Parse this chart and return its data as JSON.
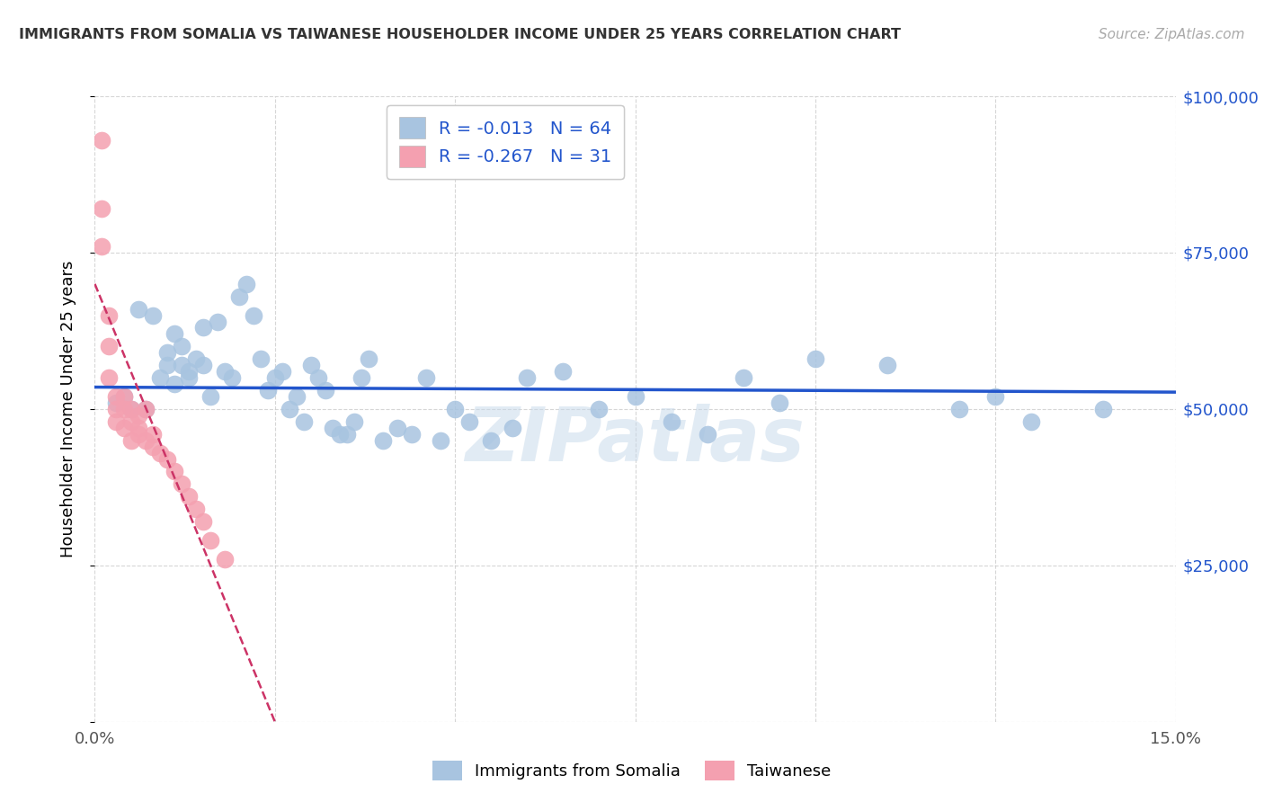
{
  "title": "IMMIGRANTS FROM SOMALIA VS TAIWANESE HOUSEHOLDER INCOME UNDER 25 YEARS CORRELATION CHART",
  "source": "Source: ZipAtlas.com",
  "ylabel": "Householder Income Under 25 years",
  "xlim": [
    0,
    0.15
  ],
  "ylim": [
    0,
    100000
  ],
  "blue_color": "#a8c4e0",
  "pink_color": "#f4a0b0",
  "blue_line_color": "#2255cc",
  "pink_line_color": "#cc3366",
  "watermark": "ZIPatlas",
  "legend_r_blue": "-0.013",
  "legend_n_blue": "64",
  "legend_r_pink": "-0.267",
  "legend_n_pink": "31",
  "blue_scatter_x": [
    0.003,
    0.004,
    0.005,
    0.006,
    0.007,
    0.008,
    0.009,
    0.01,
    0.01,
    0.011,
    0.011,
    0.012,
    0.012,
    0.013,
    0.013,
    0.014,
    0.015,
    0.015,
    0.016,
    0.017,
    0.018,
    0.019,
    0.02,
    0.021,
    0.022,
    0.023,
    0.024,
    0.025,
    0.026,
    0.027,
    0.028,
    0.029,
    0.03,
    0.031,
    0.032,
    0.033,
    0.034,
    0.035,
    0.036,
    0.037,
    0.038,
    0.04,
    0.042,
    0.044,
    0.046,
    0.048,
    0.05,
    0.052,
    0.055,
    0.058,
    0.06,
    0.065,
    0.07,
    0.075,
    0.08,
    0.085,
    0.09,
    0.095,
    0.1,
    0.11,
    0.12,
    0.125,
    0.13,
    0.14
  ],
  "blue_scatter_y": [
    51000,
    52000,
    50000,
    66000,
    50000,
    65000,
    55000,
    59000,
    57000,
    54000,
    62000,
    60000,
    57000,
    56000,
    55000,
    58000,
    63000,
    57000,
    52000,
    64000,
    56000,
    55000,
    68000,
    70000,
    65000,
    58000,
    53000,
    55000,
    56000,
    50000,
    52000,
    48000,
    57000,
    55000,
    53000,
    47000,
    46000,
    46000,
    48000,
    55000,
    58000,
    45000,
    47000,
    46000,
    55000,
    45000,
    50000,
    48000,
    45000,
    47000,
    55000,
    56000,
    50000,
    52000,
    48000,
    46000,
    55000,
    51000,
    58000,
    57000,
    50000,
    52000,
    48000,
    50000
  ],
  "pink_scatter_x": [
    0.001,
    0.001,
    0.001,
    0.002,
    0.002,
    0.002,
    0.003,
    0.003,
    0.003,
    0.004,
    0.004,
    0.004,
    0.005,
    0.005,
    0.005,
    0.006,
    0.006,
    0.006,
    0.007,
    0.007,
    0.008,
    0.008,
    0.009,
    0.01,
    0.011,
    0.012,
    0.013,
    0.014,
    0.015,
    0.016,
    0.018
  ],
  "pink_scatter_y": [
    93000,
    82000,
    76000,
    65000,
    60000,
    55000,
    52000,
    50000,
    48000,
    52000,
    50000,
    47000,
    50000,
    48000,
    45000,
    49000,
    47000,
    46000,
    50000,
    45000,
    46000,
    44000,
    43000,
    42000,
    40000,
    38000,
    36000,
    34000,
    32000,
    29000,
    26000
  ],
  "blue_line_y_at_0": 53500,
  "blue_line_y_at_015": 52700,
  "pink_line_y_at_0": 70000,
  "pink_line_slope": -2800000
}
